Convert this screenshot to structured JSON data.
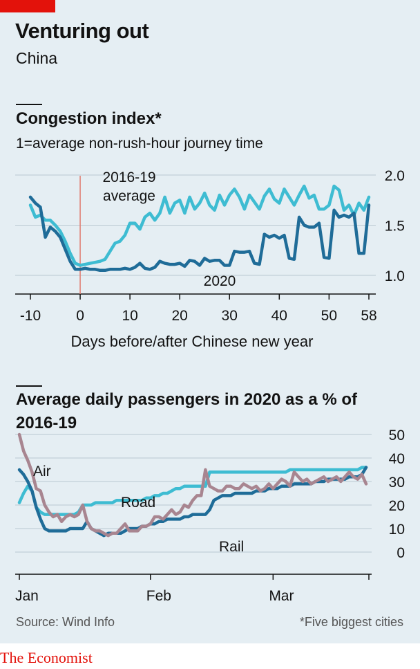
{
  "header": {
    "title": "Venturing out",
    "subtitle": "China"
  },
  "chart1_header": {
    "title": "Congestion index*",
    "subtitle": "1=average non-rush-hour journey time"
  },
  "chart2_header": {
    "title": "Average daily passengers in 2020 as a % of 2016-19"
  },
  "footer": {
    "source": "Source: Wind Info",
    "footnote": "*Five biggest cities",
    "brand": "The Economist"
  },
  "colors": {
    "accent": "#e3120b",
    "dark_blue": "#1f6c98",
    "light_blue": "#3ebcd2",
    "mauve": "#a88590",
    "background": "#e5eef3"
  },
  "chart_data": [
    {
      "type": "line",
      "title": "Congestion index*",
      "subtitle": "1=average non-rush-hour journey time",
      "xlabel": "Days before/after Chinese new year",
      "xlim": [
        -12,
        59
      ],
      "ylim": [
        0.85,
        2.0
      ],
      "xticks": [
        "-10",
        "0",
        "10",
        "20",
        "30",
        "40",
        "50",
        "58"
      ],
      "xtick_values": [
        -10,
        0,
        10,
        20,
        30,
        40,
        50,
        58
      ],
      "yticks": [
        "1.0",
        "1.5",
        "2.0"
      ],
      "ytick_values": [
        1.0,
        1.5,
        2.0
      ],
      "grid": true,
      "reference_line": {
        "x": 0
      },
      "series": [
        {
          "name": "2016-19 average",
          "color": "#3ebcd2",
          "x": [
            -10,
            -9,
            -8,
            -7,
            -6,
            -5,
            -4,
            -3,
            -2,
            -1,
            0,
            1,
            2,
            3,
            4,
            5,
            6,
            7,
            8,
            9,
            10,
            11,
            12,
            13,
            14,
            15,
            16,
            17,
            18,
            19,
            20,
            21,
            22,
            23,
            24,
            25,
            26,
            27,
            28,
            29,
            30,
            31,
            32,
            33,
            34,
            35,
            36,
            37,
            38,
            39,
            40,
            41,
            42,
            43,
            44,
            45,
            46,
            47,
            48,
            49,
            50,
            51,
            52,
            53,
            54,
            55,
            56,
            57,
            58
          ],
          "y": [
            1.7,
            1.58,
            1.6,
            1.55,
            1.55,
            1.5,
            1.44,
            1.34,
            1.22,
            1.12,
            1.1,
            1.11,
            1.12,
            1.13,
            1.14,
            1.16,
            1.24,
            1.32,
            1.34,
            1.4,
            1.52,
            1.52,
            1.46,
            1.58,
            1.62,
            1.55,
            1.62,
            1.78,
            1.62,
            1.72,
            1.75,
            1.62,
            1.78,
            1.66,
            1.72,
            1.82,
            1.7,
            1.65,
            1.8,
            1.7,
            1.8,
            1.86,
            1.78,
            1.66,
            1.8,
            1.73,
            1.66,
            1.79,
            1.86,
            1.76,
            1.72,
            1.86,
            1.78,
            1.7,
            1.8,
            1.89,
            1.77,
            1.8,
            1.66,
            1.66,
            1.7,
            1.89,
            1.85,
            1.65,
            1.7,
            1.6,
            1.72,
            1.65,
            1.78
          ]
        },
        {
          "name": "2020",
          "color": "#1f6c98",
          "x": [
            -10,
            -9,
            -8,
            -7,
            -6,
            -5,
            -4,
            -3,
            -2,
            -1,
            0,
            1,
            2,
            3,
            4,
            5,
            6,
            7,
            8,
            9,
            10,
            11,
            12,
            13,
            14,
            15,
            16,
            17,
            18,
            19,
            20,
            21,
            22,
            23,
            24,
            25,
            26,
            27,
            28,
            29,
            30,
            31,
            32,
            33,
            34,
            35,
            36,
            37,
            38,
            39,
            40,
            41,
            42,
            43,
            44,
            45,
            46,
            47,
            48,
            49,
            50,
            51,
            52,
            53,
            54,
            55,
            56,
            57,
            58
          ],
          "y": [
            1.78,
            1.72,
            1.68,
            1.38,
            1.48,
            1.44,
            1.38,
            1.26,
            1.14,
            1.06,
            1.06,
            1.07,
            1.06,
            1.06,
            1.05,
            1.05,
            1.06,
            1.06,
            1.06,
            1.07,
            1.06,
            1.08,
            1.12,
            1.07,
            1.06,
            1.08,
            1.14,
            1.12,
            1.11,
            1.11,
            1.12,
            1.09,
            1.15,
            1.14,
            1.1,
            1.17,
            1.14,
            1.15,
            1.15,
            1.1,
            1.1,
            1.24,
            1.23,
            1.23,
            1.24,
            1.12,
            1.11,
            1.41,
            1.38,
            1.4,
            1.37,
            1.4,
            1.17,
            1.16,
            1.58,
            1.5,
            1.48,
            1.48,
            1.52,
            1.18,
            1.17,
            1.65,
            1.58,
            1.6,
            1.58,
            1.62,
            1.22,
            1.22,
            1.7
          ]
        }
      ],
      "annotations": [
        "2016-19",
        "average",
        "2020"
      ]
    },
    {
      "type": "line",
      "title": "Average daily passengers in 2020 as a % of 2016-19",
      "xlim": [
        1,
        85
      ],
      "ylim": [
        -3,
        50
      ],
      "xticks": [
        "Jan",
        "Feb",
        "Mar"
      ],
      "xtick_values": [
        1,
        32,
        61
      ],
      "yticks": [
        "0",
        "10",
        "20",
        "30",
        "40",
        "50"
      ],
      "ytick_values": [
        0,
        10,
        20,
        30,
        40,
        50
      ],
      "grid": true,
      "series": [
        {
          "name": "Air",
          "color": "#a88590",
          "x": [
            1,
            2,
            3,
            4,
            5,
            6,
            7,
            8,
            9,
            10,
            11,
            12,
            13,
            14,
            15,
            16,
            17,
            18,
            19,
            20,
            21,
            22,
            23,
            24,
            25,
            26,
            27,
            28,
            29,
            30,
            31,
            32,
            33,
            34,
            35,
            36,
            37,
            38,
            39,
            40,
            41,
            42,
            43,
            44,
            45,
            46,
            47,
            48,
            49,
            50,
            51,
            52,
            53,
            54,
            55,
            56,
            57,
            58,
            59,
            60,
            61,
            62,
            63,
            64,
            65,
            66,
            67,
            68,
            69,
            70,
            71,
            72,
            73,
            74,
            75,
            76,
            77,
            78,
            79,
            80,
            81,
            82,
            83
          ],
          "y": [
            50,
            43,
            39,
            34,
            27,
            26,
            20,
            17,
            15,
            16,
            13,
            15,
            16,
            15,
            16,
            20,
            13,
            10,
            9,
            9,
            8,
            7,
            8,
            8,
            10,
            12,
            9,
            9,
            9,
            11,
            11,
            12,
            15,
            15,
            14,
            16,
            18,
            16,
            17,
            20,
            19,
            22,
            24,
            24,
            35,
            28,
            27,
            26,
            26,
            28,
            28,
            27,
            27,
            29,
            28,
            27,
            28,
            26,
            27,
            29,
            27,
            29,
            31,
            30,
            28,
            34,
            32,
            30,
            31,
            29,
            30,
            31,
            32,
            30,
            31,
            32,
            30,
            32,
            34,
            32,
            31,
            33,
            29
          ]
        },
        {
          "name": "Road",
          "color": "#3ebcd2",
          "x": [
            1,
            2,
            3,
            4,
            5,
            6,
            7,
            8,
            9,
            10,
            11,
            12,
            13,
            14,
            15,
            16,
            17,
            18,
            19,
            20,
            21,
            22,
            23,
            24,
            25,
            26,
            27,
            28,
            29,
            30,
            31,
            32,
            33,
            34,
            35,
            36,
            37,
            38,
            39,
            40,
            41,
            42,
            43,
            44,
            45,
            46,
            47,
            48,
            49,
            50,
            51,
            52,
            53,
            54,
            55,
            56,
            57,
            58,
            59,
            60,
            61,
            62,
            63,
            64,
            65,
            66,
            67,
            68,
            69,
            70,
            71,
            72,
            73,
            74,
            75,
            76,
            77,
            78,
            79,
            80,
            81,
            82,
            83
          ],
          "y": [
            21,
            25,
            28,
            26,
            19,
            17,
            16,
            16,
            16,
            16,
            16,
            16,
            16,
            16,
            17,
            20,
            20,
            20,
            21,
            21,
            21,
            21,
            21,
            22,
            22,
            22,
            22,
            22,
            22,
            22,
            23,
            23,
            24,
            24,
            25,
            25,
            26,
            27,
            27,
            28,
            28,
            28,
            28,
            28,
            28,
            34,
            34,
            34,
            34,
            34,
            34,
            34,
            34,
            34,
            34,
            34,
            34,
            34,
            34,
            34,
            34,
            34,
            34,
            34,
            35,
            35,
            35,
            35,
            35,
            35,
            35,
            35,
            35,
            35,
            35,
            35,
            35,
            35,
            35,
            35,
            35,
            36,
            36
          ]
        },
        {
          "name": "Rail",
          "color": "#1f6c98",
          "x": [
            1,
            2,
            3,
            4,
            5,
            6,
            7,
            8,
            9,
            10,
            11,
            12,
            13,
            14,
            15,
            16,
            17,
            18,
            19,
            20,
            21,
            22,
            23,
            24,
            25,
            26,
            27,
            28,
            29,
            30,
            31,
            32,
            33,
            34,
            35,
            36,
            37,
            38,
            39,
            40,
            41,
            42,
            43,
            44,
            45,
            46,
            47,
            48,
            49,
            50,
            51,
            52,
            53,
            54,
            55,
            56,
            57,
            58,
            59,
            60,
            61,
            62,
            63,
            64,
            65,
            66,
            67,
            68,
            69,
            70,
            71,
            72,
            73,
            74,
            75,
            76,
            77,
            78,
            79,
            80,
            81,
            82,
            83
          ],
          "y": [
            35,
            33,
            30,
            26,
            19,
            14,
            10,
            9,
            9,
            9,
            9,
            9,
            10,
            10,
            10,
            10,
            13,
            10,
            9,
            8,
            7,
            8,
            8,
            8,
            8,
            9,
            10,
            10,
            10,
            11,
            11,
            12,
            12,
            13,
            13,
            14,
            14,
            14,
            14,
            15,
            15,
            16,
            16,
            16,
            16,
            18,
            22,
            23,
            24,
            24,
            24,
            25,
            25,
            25,
            25,
            25,
            26,
            26,
            26,
            27,
            27,
            27,
            28,
            28,
            28,
            29,
            29,
            29,
            29,
            29,
            30,
            30,
            30,
            31,
            31,
            31,
            31,
            31,
            32,
            32,
            32,
            33,
            36
          ]
        }
      ]
    }
  ]
}
